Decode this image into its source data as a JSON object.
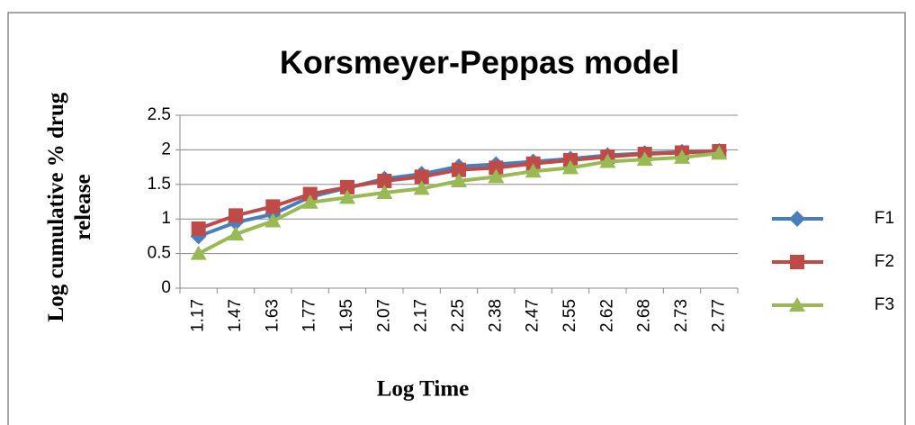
{
  "chart_data": {
    "type": "line",
    "title": "Korsmeyer-Peppas model",
    "x_label": "Log Time",
    "y_label": "Log cumulative % drug release",
    "categories": [
      "1.17",
      "1.47",
      "1.63",
      "1.77",
      "1.95",
      "2.07",
      "2.17",
      "2.25",
      "2.38",
      "2.47",
      "2.55",
      "2.62",
      "2.68",
      "2.73",
      "2.77"
    ],
    "series": [
      {
        "name": "F1",
        "color": "#4a7ebb",
        "marker": "diamond",
        "values": [
          0.75,
          0.95,
          1.07,
          1.32,
          1.45,
          1.58,
          1.65,
          1.76,
          1.79,
          1.83,
          1.87,
          1.92,
          1.95,
          1.97,
          1.98
        ]
      },
      {
        "name": "F2",
        "color": "#be4b48",
        "marker": "square",
        "values": [
          0.86,
          1.05,
          1.18,
          1.36,
          1.46,
          1.55,
          1.61,
          1.71,
          1.74,
          1.8,
          1.85,
          1.9,
          1.94,
          1.96,
          1.98
        ]
      },
      {
        "name": "F3",
        "color": "#98b954",
        "marker": "triangle",
        "values": [
          0.5,
          0.78,
          0.97,
          1.24,
          1.31,
          1.38,
          1.44,
          1.55,
          1.61,
          1.69,
          1.74,
          1.83,
          1.86,
          1.89,
          1.95
        ]
      }
    ],
    "ylim": [
      0,
      2.5
    ],
    "yticks": [
      0,
      0.5,
      1,
      1.5,
      2,
      2.5
    ],
    "grid": true,
    "legend": "right"
  }
}
